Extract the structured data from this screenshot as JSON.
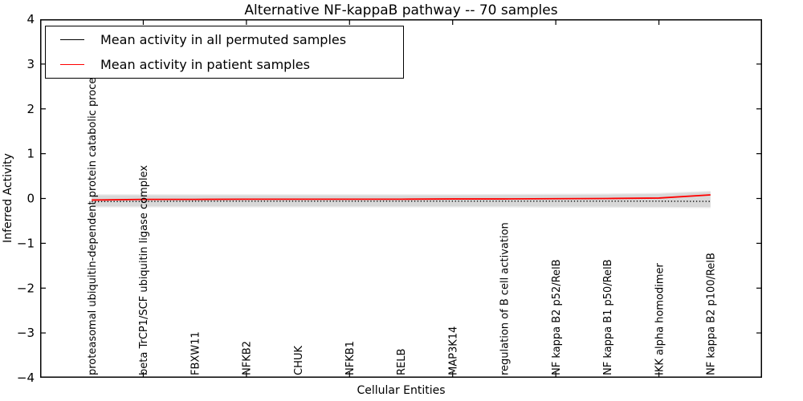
{
  "figure": {
    "title": "Alternative NF-kappaB pathway -- 70 samples"
  },
  "axes": {
    "x_label": "Cellular Entities",
    "y_label": "Inferred Activity"
  },
  "legend": {
    "position": "upper left",
    "entries": [
      {
        "label": "Mean activity in all permuted samples",
        "color": "#000000"
      },
      {
        "label": "Mean activity in patient samples",
        "color": "#ff0000"
      }
    ]
  },
  "chart_data": {
    "type": "line",
    "title": "Alternative NF-kappaB pathway -- 70 samples",
    "xlabel": "Cellular Entities",
    "ylabel": "Inferred Activity",
    "ylim": [
      -4,
      4
    ],
    "yticks": [
      -4,
      -3,
      -2,
      -1,
      0,
      1,
      2,
      3,
      4
    ],
    "ytick_labels": [
      "−4",
      "−3",
      "−2",
      "−1",
      "0",
      "1",
      "2",
      "3",
      "4"
    ],
    "grid": false,
    "legend_position": "upper left",
    "categories": [
      "proteasomal ubiquitin-dependent protein catabolic process",
      "beta TrCP1/SCF ubiquitin ligase complex",
      "FBXW11",
      "NFKB2",
      "CHUK",
      "NFKB1",
      "RELB",
      "MAP3K14",
      "regulation of B cell activation",
      "NF kappa B2 p52/RelB",
      "NF kappa B1 p50/RelB",
      "IKK alpha homodimer",
      "NF kappa B2 p100/RelB"
    ],
    "series": [
      {
        "name": "Mean activity in all permuted samples",
        "color": "#000000",
        "linestyle": "dotted",
        "values": [
          -0.07,
          -0.065,
          -0.06,
          -0.06,
          -0.06,
          -0.06,
          -0.06,
          -0.06,
          -0.06,
          -0.06,
          -0.06,
          -0.06,
          -0.065
        ]
      },
      {
        "name": "Mean activity in patient samples",
        "color": "#ff0000",
        "linestyle": "solid",
        "values": [
          -0.035,
          -0.02,
          -0.02,
          -0.015,
          -0.015,
          -0.015,
          -0.015,
          -0.01,
          -0.01,
          -0.005,
          0.0,
          0.01,
          0.08
        ]
      }
    ],
    "band": {
      "name": "permuted samples std range",
      "color": "#d8d8d8",
      "color_outer": "#ebebeb",
      "upper": [
        0.07,
        0.07,
        0.07,
        0.07,
        0.07,
        0.07,
        0.07,
        0.07,
        0.075,
        0.08,
        0.085,
        0.1,
        0.145
      ],
      "lower": [
        -0.175,
        -0.175,
        -0.175,
        -0.175,
        -0.175,
        -0.175,
        -0.175,
        -0.175,
        -0.175,
        -0.18,
        -0.18,
        -0.185,
        -0.19
      ]
    }
  }
}
